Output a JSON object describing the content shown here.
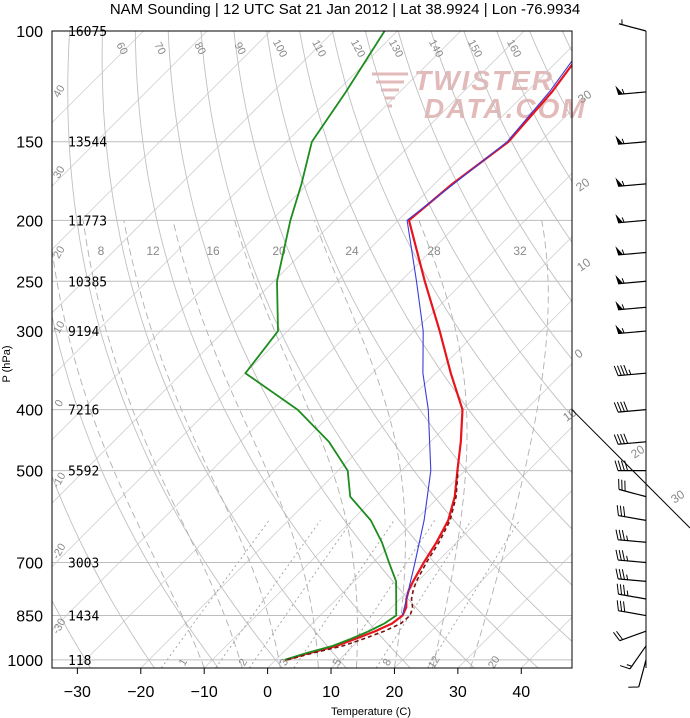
{
  "title": "NAM Sounding | 12 UTC Sat 21 Jan 2012 | Lat 38.9924 | Lon -76.9934",
  "watermark": [
    "TWISTER",
    "DATA.COM"
  ],
  "chart_data": {
    "type": "line",
    "title": "NAM Sounding | 12 UTC Sat 21 Jan 2012 | Lat 38.9924 | Lon -76.9934",
    "xlabel": "Temperature (C)",
    "ylabel": "P (hPa)",
    "xlim": [
      -34,
      48
    ],
    "ylim": [
      1030,
      100
    ],
    "yscale": "log",
    "x_ticks": [
      -30,
      -20,
      -10,
      0,
      10,
      20,
      30,
      40
    ],
    "pressure_ticks": [
      {
        "p": 100,
        "label": "100",
        "height": "16075"
      },
      {
        "p": 150,
        "label": "150",
        "height": "13544"
      },
      {
        "p": 200,
        "label": "200",
        "height": "11773"
      },
      {
        "p": 250,
        "label": "250",
        "height": "10385"
      },
      {
        "p": 300,
        "label": "300",
        "height": "9194"
      },
      {
        "p": 400,
        "label": "400",
        "height": "7216"
      },
      {
        "p": 500,
        "label": "500",
        "height": "5592"
      },
      {
        "p": 700,
        "label": "700",
        "height": "3003"
      },
      {
        "p": 850,
        "label": "850",
        "height": "1434"
      },
      {
        "p": 1000,
        "label": "1000",
        "height": "118"
      }
    ],
    "dry_adiabat_labels": [
      "40",
      "30",
      "20",
      "10",
      "0",
      "-10",
      "-20",
      "-30",
      "60",
      "70",
      "80",
      "90",
      "100",
      "110",
      "120",
      "130",
      "140",
      "150",
      "160"
    ],
    "moist_adiabat_labels": [
      "30",
      "20",
      "10",
      "0",
      "10",
      "20",
      "30"
    ],
    "mixing_ratio_labels": [
      "1",
      "2",
      "3",
      "5",
      "8",
      "12",
      "20"
    ],
    "isotherm_labels_top": [
      "8",
      "12",
      "16",
      "20",
      "24",
      "28",
      "32"
    ],
    "series": [
      {
        "name": "Temperature",
        "color": "#e8141c",
        "points": [
          [
            1000,
            1.5
          ],
          [
            975,
            4.2
          ],
          [
            950,
            7.4
          ],
          [
            925,
            9.3
          ],
          [
            900,
            11.2
          ],
          [
            875,
            12.6
          ],
          [
            850,
            13.0
          ],
          [
            825,
            12.3
          ],
          [
            800,
            11.0
          ],
          [
            775,
            10.0
          ],
          [
            750,
            9.3
          ],
          [
            700,
            8.0
          ],
          [
            650,
            6.8
          ],
          [
            600,
            5.2
          ],
          [
            550,
            2.5
          ],
          [
            500,
            -1.2
          ],
          [
            450,
            -5.2
          ],
          [
            400,
            -10.0
          ],
          [
            350,
            -17.6
          ],
          [
            300,
            -26.0
          ],
          [
            250,
            -36.2
          ],
          [
            200,
            -48.3
          ],
          [
            175,
            -47.2
          ],
          [
            150,
            -45.0
          ],
          [
            125,
            -46.0
          ],
          [
            100,
            -48.5
          ]
        ]
      },
      {
        "name": "Parcel",
        "color": "#3b3bdc",
        "points": [
          [
            850,
            13.0
          ],
          [
            800,
            11.0
          ],
          [
            700,
            6.6
          ],
          [
            600,
            1.4
          ],
          [
            500,
            -5.4
          ],
          [
            400,
            -15.4
          ],
          [
            350,
            -22.0
          ],
          [
            300,
            -28.6
          ],
          [
            250,
            -37.5
          ],
          [
            200,
            -48.6
          ],
          [
            175,
            -47.0
          ],
          [
            150,
            -45.2
          ],
          [
            125,
            -46.4
          ],
          [
            100,
            -49.0
          ]
        ]
      },
      {
        "name": "Dewpoint",
        "color": "#1e8c1e",
        "points": [
          [
            1000,
            1.4
          ],
          [
            975,
            3.8
          ],
          [
            950,
            6.8
          ],
          [
            925,
            8.6
          ],
          [
            900,
            10.2
          ],
          [
            875,
            11.4
          ],
          [
            850,
            12.0
          ],
          [
            800,
            9.4
          ],
          [
            750,
            6.6
          ],
          [
            700,
            2.5
          ],
          [
            650,
            -1.8
          ],
          [
            600,
            -7.0
          ],
          [
            550,
            -14.0
          ],
          [
            500,
            -18.5
          ],
          [
            450,
            -26.0
          ],
          [
            400,
            -36.0
          ],
          [
            350,
            -50.0
          ],
          [
            300,
            -51.5
          ],
          [
            250,
            -59.5
          ],
          [
            200,
            -67.0
          ],
          [
            175,
            -71.0
          ],
          [
            150,
            -76.0
          ],
          [
            125,
            -78.5
          ],
          [
            100,
            -82.0
          ]
        ]
      },
      {
        "name": "Virtual temperature",
        "color": "#7a1010",
        "style": "dashed",
        "points": [
          [
            1000,
            1.8
          ],
          [
            975,
            4.8
          ],
          [
            950,
            8.4
          ],
          [
            925,
            10.6
          ],
          [
            900,
            12.6
          ],
          [
            875,
            14.0
          ],
          [
            850,
            14.2
          ],
          [
            825,
            13.3
          ],
          [
            800,
            11.8
          ],
          [
            775,
            10.7
          ],
          [
            750,
            9.8
          ],
          [
            700,
            8.4
          ],
          [
            650,
            7.2
          ],
          [
            600,
            5.5
          ],
          [
            550,
            2.7
          ],
          [
            500,
            -1.1
          ]
        ]
      }
    ],
    "wind_barbs": [
      {
        "p": 100,
        "speed_kt": 5,
        "dir": 285
      },
      {
        "p": 125,
        "speed_kt": 55,
        "dir": 265
      },
      {
        "p": 150,
        "speed_kt": 55,
        "dir": 265
      },
      {
        "p": 175,
        "speed_kt": 55,
        "dir": 265
      },
      {
        "p": 200,
        "speed_kt": 55,
        "dir": 265
      },
      {
        "p": 225,
        "speed_kt": 55,
        "dir": 265
      },
      {
        "p": 250,
        "speed_kt": 55,
        "dir": 265
      },
      {
        "p": 275,
        "speed_kt": 55,
        "dir": 265
      },
      {
        "p": 300,
        "speed_kt": 55,
        "dir": 265
      },
      {
        "p": 350,
        "speed_kt": 45,
        "dir": 265
      },
      {
        "p": 400,
        "speed_kt": 40,
        "dir": 265
      },
      {
        "p": 450,
        "speed_kt": 40,
        "dir": 265
      },
      {
        "p": 500,
        "speed_kt": 40,
        "dir": 270
      },
      {
        "p": 550,
        "speed_kt": 30,
        "dir": 285
      },
      {
        "p": 600,
        "speed_kt": 30,
        "dir": 280
      },
      {
        "p": 650,
        "speed_kt": 35,
        "dir": 275
      },
      {
        "p": 700,
        "speed_kt": 35,
        "dir": 275
      },
      {
        "p": 750,
        "speed_kt": 35,
        "dir": 275
      },
      {
        "p": 800,
        "speed_kt": 35,
        "dir": 280
      },
      {
        "p": 850,
        "speed_kt": 30,
        "dir": 280
      },
      {
        "p": 900,
        "speed_kt": 20,
        "dir": 250
      },
      {
        "p": 950,
        "speed_kt": 15,
        "dir": 215
      },
      {
        "p": 1000,
        "speed_kt": 10,
        "dir": 195
      }
    ],
    "colors": {
      "isobar": "#bdbdbd",
      "dry_adiabat": "#c0c0c0",
      "moist_adiabat": "#b0b0b0",
      "mixing_ratio": "#a0a0a0",
      "watermark": "#d9a3a3"
    }
  }
}
